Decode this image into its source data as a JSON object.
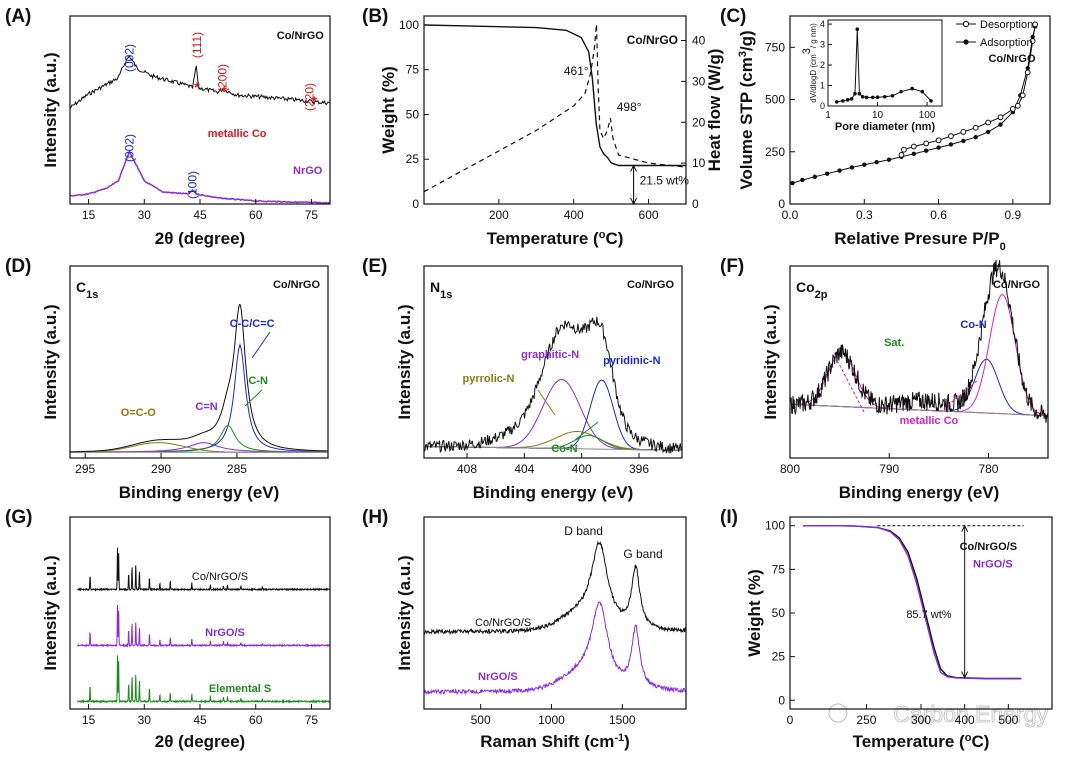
{
  "colors": {
    "black": "#111111",
    "blue": "#1a2bd6",
    "red": "#e0141e",
    "purple": "#8a2be2",
    "green": "#1f8a1f",
    "olive": "#8a7a12",
    "magenta": "#e020c0",
    "gray": "#888888"
  },
  "chart_data": [
    {
      "panel": "(A)",
      "type": "line",
      "xlabel": "2θ (degree)",
      "ylabel": "Intensity (a.u.)",
      "xlim": [
        10,
        80
      ],
      "xticks": [
        "15",
        "30",
        "45",
        "60",
        "75"
      ],
      "sample": "Co/NrGO",
      "series": [
        {
          "name": "Co/NrGO",
          "color": "black",
          "points": [
            [
              10,
              92
            ],
            [
              15,
              78
            ],
            [
              20,
              68
            ],
            [
              23,
              62
            ],
            [
              25,
              45
            ],
            [
              26,
              40
            ],
            [
              28,
              52
            ],
            [
              32,
              60
            ],
            [
              38,
              66
            ],
            [
              42,
              70
            ],
            [
              43,
              72
            ],
            [
              44,
              50
            ],
            [
              44.6,
              72
            ],
            [
              50,
              76
            ],
            [
              51,
              73
            ],
            [
              55,
              79
            ],
            [
              65,
              82
            ],
            [
              74,
              85
            ],
            [
              76,
              86
            ],
            [
              80,
              87
            ]
          ]
        },
        {
          "name": "NrGO",
          "color": "purple",
          "points": [
            [
              10,
              180
            ],
            [
              15,
              178
            ],
            [
              20,
              172
            ],
            [
              23,
              165
            ],
            [
              25,
              145
            ],
            [
              26,
              136
            ],
            [
              28,
              150
            ],
            [
              30,
              165
            ],
            [
              35,
              176
            ],
            [
              42,
              178
            ],
            [
              43,
              174
            ],
            [
              44,
              178
            ],
            [
              50,
              182
            ],
            [
              60,
              185
            ],
            [
              70,
              186
            ],
            [
              80,
              187
            ]
          ]
        }
      ],
      "labels": [
        {
          "text": "(002)",
          "color": "blue",
          "x": 26,
          "y": 28
        },
        {
          "text": "(111)",
          "color": "red",
          "x": 44.2,
          "y": 15
        },
        {
          "text": "(200)",
          "color": "red",
          "x": 51,
          "y": 48
        },
        {
          "text": "(220)",
          "color": "red",
          "x": 74.5,
          "y": 67
        },
        {
          "text": "metallic Co",
          "color": "red",
          "x": 55,
          "y": 113
        },
        {
          "text": "(002)",
          "color": "blue",
          "x": 26,
          "y": 118
        },
        {
          "text": "(100)",
          "color": "blue",
          "x": 43,
          "y": 155
        },
        {
          "text": "NrGO",
          "color": "purple",
          "x": 74,
          "y": 150
        },
        {
          "text": "Co/NrGO",
          "color": "black",
          "x": 72,
          "y": 15
        }
      ]
    },
    {
      "panel": "(B)",
      "type": "line",
      "xlabel": "Temperature (°C)",
      "ylabel": "Weight (%)",
      "y2label": "Heat flow (W/g)",
      "xlim": [
        0,
        700
      ],
      "ylim": [
        0,
        105
      ],
      "y2lim": [
        0,
        46
      ],
      "xticks": [
        "200",
        "400",
        "600"
      ],
      "yticks": [
        "0",
        "25",
        "50",
        "75",
        "100"
      ],
      "y2ticks": [
        "0",
        "10",
        "20",
        "30",
        "40"
      ],
      "sample": "Co/NrGO",
      "weight": [
        [
          0,
          100
        ],
        [
          100,
          99.5
        ],
        [
          200,
          99
        ],
        [
          300,
          98.5
        ],
        [
          380,
          97
        ],
        [
          420,
          93
        ],
        [
          440,
          85
        ],
        [
          450,
          70
        ],
        [
          460,
          45
        ],
        [
          470,
          32
        ],
        [
          480,
          28
        ],
        [
          490,
          26
        ],
        [
          500,
          23
        ],
        [
          520,
          21.5
        ],
        [
          600,
          21.5
        ],
        [
          700,
          21.5
        ]
      ],
      "heat_flow": [
        [
          0,
          3
        ],
        [
          100,
          8
        ],
        [
          200,
          13
        ],
        [
          300,
          18
        ],
        [
          400,
          24
        ],
        [
          430,
          27
        ],
        [
          445,
          32
        ],
        [
          455,
          38
        ],
        [
          461,
          44
        ],
        [
          465,
          30
        ],
        [
          470,
          18
        ],
        [
          480,
          16
        ],
        [
          490,
          18
        ],
        [
          498,
          21
        ],
        [
          505,
          16
        ],
        [
          520,
          12
        ],
        [
          600,
          10
        ],
        [
          700,
          9
        ]
      ],
      "annotations": [
        "461°",
        "498°",
        "21.5 wt%"
      ]
    },
    {
      "panel": "(C)",
      "type": "line",
      "xlabel": "Relative Presure P/P",
      "xlabel_sub": "0",
      "ylabel": "Volume STP (cm",
      "ylabel_sup": "3",
      "ylabel_tail": "/g)",
      "xlim": [
        0,
        1.05
      ],
      "ylim": [
        0,
        900
      ],
      "xticks": [
        "0.0",
        "0.3",
        "0.6",
        "0.9"
      ],
      "yticks": [
        "0",
        "250",
        "500",
        "750"
      ],
      "legend": [
        "Desorption",
        "Adsorption",
        "Co/NrGO"
      ],
      "adsorption": [
        [
          0.01,
          100
        ],
        [
          0.05,
          115
        ],
        [
          0.1,
          130
        ],
        [
          0.15,
          145
        ],
        [
          0.2,
          160
        ],
        [
          0.25,
          175
        ],
        [
          0.3,
          188
        ],
        [
          0.35,
          200
        ],
        [
          0.4,
          212
        ],
        [
          0.45,
          226
        ],
        [
          0.5,
          240
        ],
        [
          0.55,
          255
        ],
        [
          0.6,
          270
        ],
        [
          0.65,
          285
        ],
        [
          0.7,
          302
        ],
        [
          0.75,
          320
        ],
        [
          0.8,
          345
        ],
        [
          0.85,
          380
        ],
        [
          0.9,
          440
        ],
        [
          0.93,
          520
        ],
        [
          0.96,
          650
        ],
        [
          0.98,
          800
        ],
        [
          0.99,
          850
        ]
      ],
      "desorption": [
        [
          0.99,
          860
        ],
        [
          0.98,
          780
        ],
        [
          0.96,
          630
        ],
        [
          0.94,
          520
        ],
        [
          0.92,
          470
        ],
        [
          0.9,
          455
        ],
        [
          0.85,
          415
        ],
        [
          0.8,
          390
        ],
        [
          0.75,
          365
        ],
        [
          0.7,
          345
        ],
        [
          0.65,
          325
        ],
        [
          0.6,
          305
        ],
        [
          0.55,
          290
        ],
        [
          0.5,
          275
        ],
        [
          0.46,
          260
        ],
        [
          0.45,
          235
        ]
      ],
      "inset": {
        "xlabel": "Pore diameter (nm)",
        "ylabel": "dV/dlogD (cm",
        "ylabel_sup": "3",
        "ylabel_tail": "/ g nm)",
        "xticks": [
          "1",
          "10",
          "100"
        ],
        "yticks": [
          "0",
          "1",
          "2",
          "3",
          "4"
        ],
        "ylim": [
          0,
          4.2
        ],
        "points": [
          [
            1.5,
            0.2
          ],
          [
            2,
            0.25
          ],
          [
            2.5,
            0.3
          ],
          [
            3,
            0.35
          ],
          [
            3.5,
            0.6
          ],
          [
            3.9,
            3.75
          ],
          [
            4.3,
            0.6
          ],
          [
            5,
            0.45
          ],
          [
            6,
            0.42
          ],
          [
            8,
            0.42
          ],
          [
            10,
            0.43
          ],
          [
            14,
            0.45
          ],
          [
            20,
            0.5
          ],
          [
            30,
            0.7
          ],
          [
            50,
            0.85
          ],
          [
            80,
            0.7
          ],
          [
            120,
            0.25
          ]
        ]
      }
    },
    {
      "panel": "(D)",
      "type": "line",
      "title_main": "C",
      "title_sub": "1s",
      "sample": "Co/NrGO",
      "xlabel": "Binding energy (eV)",
      "ylabel": "Intensity (a.u.)",
      "xlim": [
        296,
        279
      ],
      "xticks": [
        "295",
        "290",
        "285"
      ],
      "labels": [
        {
          "text": "C-C/C=C",
          "color": "blue"
        },
        {
          "text": "C-N",
          "color": "green"
        },
        {
          "text": "C=N",
          "color": "purple"
        },
        {
          "text": "O=C-O",
          "color": "olive"
        }
      ]
    },
    {
      "panel": "(E)",
      "type": "line",
      "title_main": "N",
      "title_sub": "1s",
      "sample": "Co/NrGO",
      "xlabel": "Binding energy (eV)",
      "ylabel": "Intensity (a.u.)",
      "xlim": [
        411,
        393
      ],
      "xticks": [
        "408",
        "404",
        "400",
        "396"
      ],
      "labels": [
        {
          "text": "graphitic-N",
          "color": "purple"
        },
        {
          "text": "pyridinic-N",
          "color": "blue"
        },
        {
          "text": "pyrrolic-N",
          "color": "olive"
        },
        {
          "text": "Co-N",
          "color": "green"
        }
      ]
    },
    {
      "panel": "(F)",
      "type": "line",
      "title_main": "Co",
      "title_sub": "2p",
      "sample": "Co/NrGO",
      "xlabel": "Binding energy (eV)",
      "ylabel": "Intensity (a.u.)",
      "xlim": [
        800,
        774
      ],
      "xticks": [
        "800",
        "790",
        "780"
      ],
      "labels": [
        {
          "text": "Co-N",
          "color": "blue"
        },
        {
          "text": "Sat.",
          "color": "green"
        },
        {
          "text": "metallic Co",
          "color": "magenta"
        }
      ]
    },
    {
      "panel": "(G)",
      "type": "line",
      "xlabel": "2θ (degree)",
      "ylabel": "Intensity (a.u.)",
      "xlim": [
        10,
        80
      ],
      "xticks": [
        "15",
        "30",
        "45",
        "60",
        "75"
      ],
      "series": [
        {
          "name": "Co/NrGO/S",
          "color": "black"
        },
        {
          "name": "NrGO/S",
          "color": "purple"
        },
        {
          "name": "Elemental S",
          "color": "green"
        }
      ],
      "peaks": [
        15.4,
        22.8,
        23.1,
        25.8,
        26.7,
        27.7,
        28.7,
        31.4,
        34.2,
        37.0,
        42.8,
        47.8,
        51.3,
        52.4,
        56.0,
        61.8
      ]
    },
    {
      "panel": "(H)",
      "type": "line",
      "xlabel": "Raman Shift (cm",
      "xlabel_sup": "-1",
      "xlabel_tail": ")",
      "ylabel": "Intensity (a.u.)",
      "xlim": [
        100,
        1950
      ],
      "xticks": [
        "500",
        "1000",
        "1500"
      ],
      "series": [
        {
          "name": "Co/NrGO/S",
          "color": "black"
        },
        {
          "name": "NrGO/S",
          "color": "purple"
        }
      ],
      "band_labels": [
        "D band",
        "G band"
      ],
      "band_positions": [
        1340,
        1590
      ]
    },
    {
      "panel": "(I)",
      "type": "line",
      "xlabel": "Temperature (°C)",
      "ylabel": "Weight (%)",
      "xlim": [
        0,
        600
      ],
      "ylim": [
        -5,
        105
      ],
      "xticks": [
        "0",
        "250",
        "300",
        "400",
        "500"
      ],
      "yticks": [
        "0",
        "25",
        "50",
        "75",
        "100"
      ],
      "series": [
        {
          "name": "Co/NrGO/S",
          "color": "black",
          "points": [
            [
              30,
              100
            ],
            [
              100,
              100
            ],
            [
              150,
              99.8
            ],
            [
              200,
              99
            ],
            [
              230,
              97
            ],
            [
              250,
              93
            ],
            [
              270,
              85
            ],
            [
              290,
              70
            ],
            [
              310,
              50
            ],
            [
              330,
              30
            ],
            [
              345,
              18
            ],
            [
              360,
              14
            ],
            [
              380,
              13
            ],
            [
              450,
              12.5
            ],
            [
              530,
              12.5
            ]
          ]
        },
        {
          "name": "NrGO/S",
          "color": "purple",
          "points": [
            [
              30,
              100
            ],
            [
              100,
              100
            ],
            [
              150,
              99.8
            ],
            [
              200,
              99
            ],
            [
              230,
              96.5
            ],
            [
              250,
              92
            ],
            [
              270,
              83
            ],
            [
              290,
              67
            ],
            [
              310,
              47
            ],
            [
              330,
              27
            ],
            [
              345,
              16
            ],
            [
              360,
              13.5
            ],
            [
              380,
              12.8
            ],
            [
              450,
              12.3
            ],
            [
              530,
              12.3
            ]
          ]
        }
      ],
      "annotation": "85.7 wt%",
      "watermark": "Carbon Energy"
    }
  ]
}
